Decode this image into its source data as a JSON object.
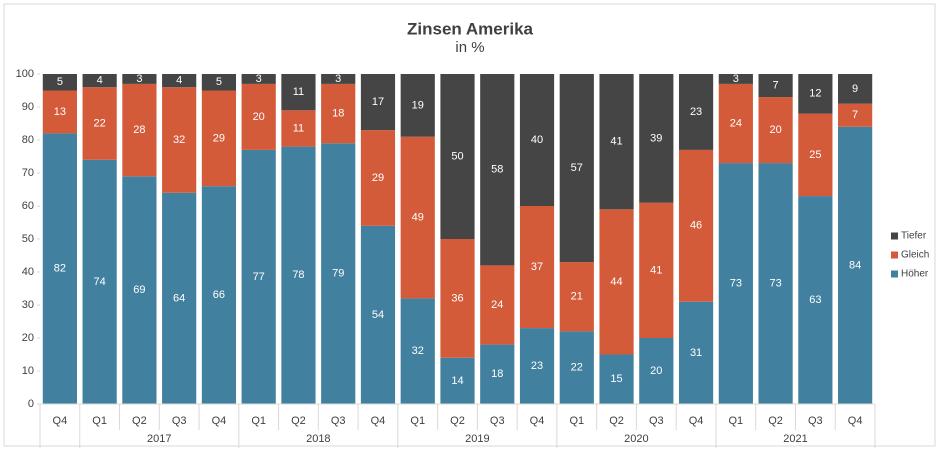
{
  "chart_data": {
    "type": "stacked_bar",
    "title": "Zinsen Amerika",
    "subtitle": "in %",
    "categories": [
      "Q4",
      "Q1",
      "Q2",
      "Q3",
      "Q4",
      "Q1",
      "Q2",
      "Q3",
      "Q4",
      "Q1",
      "Q2",
      "Q3",
      "Q4",
      "Q1",
      "Q2",
      "Q3",
      "Q4",
      "Q1",
      "Q2",
      "Q3",
      "Q4"
    ],
    "group_labels": [
      null,
      "2017",
      "2017",
      "2017",
      "2017",
      "2018",
      "2018",
      "2018",
      "2018",
      "2019",
      "2019",
      "2019",
      "2019",
      "2020",
      "2020",
      "2020",
      "2020",
      "2021",
      "2021",
      "2021",
      "2021"
    ],
    "series": [
      {
        "name": "Höher",
        "color": "#41809f",
        "values": [
          82,
          74,
          69,
          64,
          66,
          77,
          78,
          79,
          54,
          32,
          14,
          18,
          23,
          22,
          15,
          20,
          31,
          73,
          73,
          63,
          84
        ]
      },
      {
        "name": "Gleich",
        "color": "#d35b3a",
        "values": [
          13,
          22,
          28,
          32,
          29,
          20,
          11,
          18,
          29,
          49,
          36,
          24,
          37,
          21,
          44,
          41,
          46,
          24,
          20,
          25,
          7
        ]
      },
      {
        "name": "Tiefer",
        "color": "#454545",
        "values": [
          5,
          4,
          3,
          4,
          5,
          3,
          11,
          3,
          17,
          19,
          50,
          58,
          40,
          57,
          41,
          39,
          23,
          3,
          7,
          12,
          9
        ]
      }
    ],
    "ylim": [
      0,
      100
    ],
    "yticks": [
      0,
      10,
      20,
      30,
      40,
      50,
      60,
      70,
      80,
      90,
      100
    ],
    "legend": "right"
  }
}
